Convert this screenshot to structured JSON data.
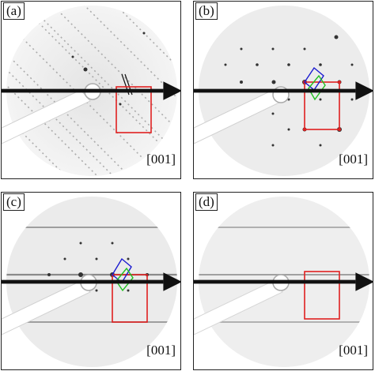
{
  "panels": [
    {
      "label": "(a)",
      "direction": "[001]"
    },
    {
      "label": "(b)",
      "direction": "[001]"
    },
    {
      "label": "(c)",
      "direction": "[001]"
    },
    {
      "label": "(d)",
      "direction": "[001]"
    }
  ],
  "colors": {
    "box_red": "#e02020",
    "box_blue": "#1a1ad0",
    "box_green": "#20c020"
  }
}
